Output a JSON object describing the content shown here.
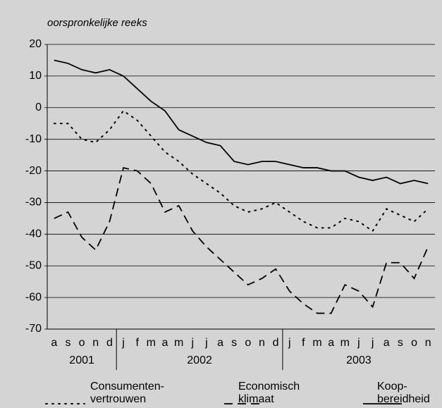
{
  "chart_data": {
    "type": "line",
    "subtitle": "oorspronkelijke reeks",
    "categories": [
      "a",
      "s",
      "o",
      "n",
      "d",
      "j",
      "f",
      "m",
      "a",
      "m",
      "j",
      "j",
      "a",
      "s",
      "o",
      "n",
      "d",
      "j",
      "f",
      "m",
      "a",
      "m",
      "j",
      "j",
      "a",
      "s",
      "o",
      "n"
    ],
    "year_groups": [
      {
        "label": "2001",
        "count": 5
      },
      {
        "label": "2002",
        "count": 12
      },
      {
        "label": "2003",
        "count": 11
      }
    ],
    "series": [
      {
        "name": "Consumenten-\nvertrouwen",
        "color": "#000000",
        "dash": "dotted",
        "values": [
          -5,
          -5,
          -10,
          -11,
          -7,
          -1,
          -4,
          -9,
          -14,
          -17,
          -21,
          -24,
          -27,
          -31,
          -33,
          -32,
          -30,
          -33,
          -36,
          -38,
          -38,
          -35,
          -36,
          -39,
          -32,
          -34,
          -36,
          -32
        ]
      },
      {
        "name": "Economisch\nklimaat",
        "color": "#000000",
        "dash": "dashed",
        "values": [
          -35,
          -33,
          -41,
          -45,
          -36,
          -19,
          -20,
          -24,
          -33,
          -31,
          -39,
          -44,
          -48,
          -52,
          -56,
          -54,
          -51,
          -58,
          -62,
          -65,
          -65,
          -56,
          -58,
          -63,
          -49,
          -49,
          -54,
          -44
        ]
      },
      {
        "name": "Koop-\nbereidheid",
        "color": "#000000",
        "dash": "solid",
        "values": [
          15,
          14,
          12,
          11,
          12,
          10,
          6,
          2,
          -1,
          -7,
          -9,
          -11,
          -12,
          -17,
          -18,
          -17,
          -17,
          -18,
          -19,
          -19,
          -20,
          -20,
          -22,
          -23,
          -22,
          -24,
          -23,
          -24
        ]
      }
    ],
    "ylim": [
      -70,
      20
    ],
    "yticks": [
      -70,
      -60,
      -50,
      -40,
      -30,
      -20,
      -10,
      0,
      10,
      20
    ],
    "grid": true
  }
}
